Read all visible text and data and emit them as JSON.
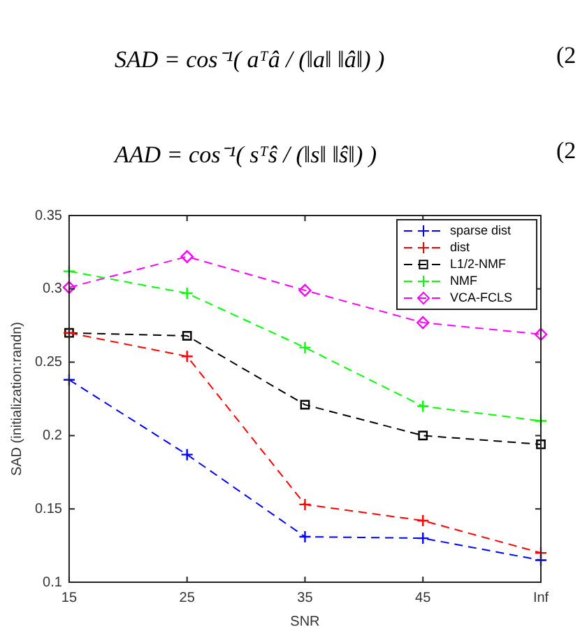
{
  "chart_data": {
    "type": "line",
    "xlabel": "SNR",
    "ylabel": "SAD (initialization:randn)",
    "annotations": [
      "SAD = cos⁻¹( aᵀâ / (‖a‖ ‖â‖) )",
      "(2",
      "AAD = cos⁻¹( sᵀŝ / (‖s‖ ‖ŝ‖) )",
      "(2"
    ],
    "categories": [
      "15",
      "25",
      "35",
      "45",
      "Inf"
    ],
    "ylim": [
      0.1,
      0.35
    ],
    "yticks": [
      0.1,
      0.15,
      0.2,
      0.25,
      0.3,
      0.35
    ],
    "grid": false,
    "legend": "top right",
    "line_style": "dashed",
    "series": [
      {
        "name": "sparse dist",
        "color": "#0000ff",
        "marker": "cross",
        "values": [
          0.238,
          0.187,
          0.131,
          0.13,
          0.115
        ]
      },
      {
        "name": "dist",
        "color": "#ff0000",
        "marker": "cross",
        "values": [
          0.27,
          0.254,
          0.153,
          0.142,
          0.12
        ]
      },
      {
        "name": "L1/2-NMF",
        "color": "#000000",
        "marker": "square",
        "values": [
          0.27,
          0.268,
          0.221,
          0.2,
          0.194
        ]
      },
      {
        "name": "NMF",
        "color": "#00ff00",
        "marker": "cross",
        "values": [
          0.312,
          0.297,
          0.26,
          0.22,
          0.21
        ]
      },
      {
        "name": "VCA-FCLS",
        "color": "#ff00ff",
        "marker": "diamond",
        "values": [
          0.301,
          0.322,
          0.299,
          0.277,
          0.269
        ]
      }
    ]
  }
}
